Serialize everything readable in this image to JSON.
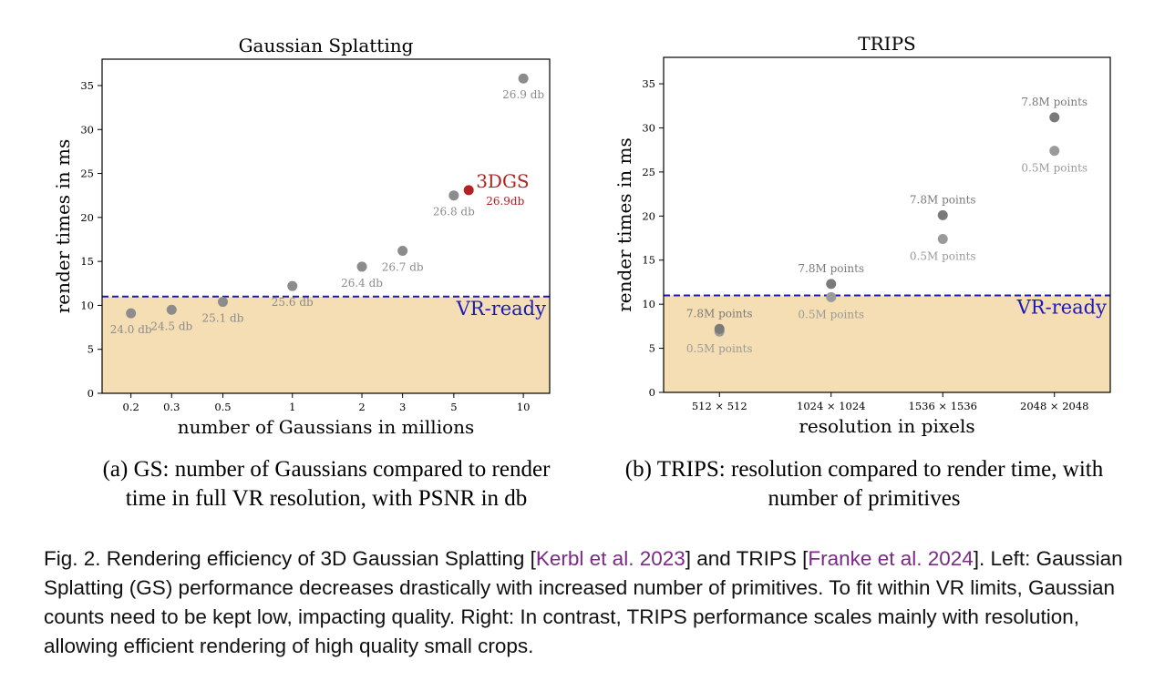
{
  "chart_data": [
    {
      "type": "scatter",
      "title": "Gaussian Splatting",
      "xlabel": "number of Gaussians in millions",
      "ylabel": "render times in ms",
      "xscale": "log",
      "xlim": [
        0.15,
        13
      ],
      "ylim": [
        0,
        38
      ],
      "xticks": [
        "0.2",
        "0.3",
        "0.5",
        "1",
        "2",
        "3",
        "5",
        "10"
      ],
      "yticks": [
        "0",
        "5",
        "10",
        "15",
        "20",
        "25",
        "30",
        "35"
      ],
      "threshold": {
        "value": 11,
        "label": "VR-ready",
        "color": "#1a1ab8",
        "style": "dashed"
      },
      "region_color": "#f5deb3",
      "point_color": "#8c8c8c",
      "highlight_color": "#b22222",
      "points": [
        {
          "x": 0.2,
          "y": 9.1,
          "label": "24.0 db"
        },
        {
          "x": 0.3,
          "y": 9.5,
          "label": "24.5 db"
        },
        {
          "x": 0.5,
          "y": 10.4,
          "label": "25.1 db"
        },
        {
          "x": 1,
          "y": 12.2,
          "label": "25.6 db"
        },
        {
          "x": 2,
          "y": 14.4,
          "label": "26.4 db"
        },
        {
          "x": 3,
          "y": 16.2,
          "label": "26.7 db"
        },
        {
          "x": 5,
          "y": 22.5,
          "label": "26.8 db"
        },
        {
          "x": 10,
          "y": 35.8,
          "label": "26.9 db"
        }
      ],
      "highlight": {
        "x": 5.8,
        "y": 23.1,
        "name": "3DGS",
        "label": "26.9db"
      }
    },
    {
      "type": "scatter",
      "title": "TRIPS",
      "xlabel": "resolution in pixels",
      "ylabel": "render times in ms",
      "categories": [
        "512 × 512",
        "1024 × 1024",
        "1536 × 1536",
        "2048 × 2048"
      ],
      "ylim": [
        0,
        38
      ],
      "yticks": [
        "0",
        "5",
        "10",
        "15",
        "20",
        "25",
        "30",
        "35"
      ],
      "threshold": {
        "value": 11,
        "label": "VR-ready",
        "color": "#1a1ab8",
        "style": "dashed"
      },
      "region_color": "#f5deb3",
      "series": [
        {
          "name": "7.8M points",
          "color": "#7a7a7a",
          "values": [
            7.2,
            12.3,
            20.1,
            31.2
          ]
        },
        {
          "name": "0.5M points",
          "color": "#9a9a9a",
          "values": [
            6.9,
            10.8,
            17.4,
            27.4
          ]
        }
      ]
    }
  ],
  "subcaptions": {
    "a_line1": "(a) GS: number of Gaussians compared to render",
    "a_line2": "time in full VR resolution, with PSNR in db",
    "b_line1": "(b) TRIPS: resolution compared to render time, with",
    "b_line2": "number of primitives"
  },
  "caption": {
    "part1": "Fig. 2.  Rendering efficiency of 3D Gaussian Splatting [",
    "cite1": "Kerbl et al. 2023",
    "part2": "] and TRIPS [",
    "cite2": "Franke et al. 2024",
    "part3": "]. Left: Gaussian Splatting (GS) performance decreases drastically with increased number of primitives. To fit within VR limits, Gaussian counts need to be kept low, impacting quality. Right: In contrast, TRIPS performance scales mainly with resolution, allowing efficient rendering of high quality small crops.",
    "cite_color": "#7a2a85"
  }
}
